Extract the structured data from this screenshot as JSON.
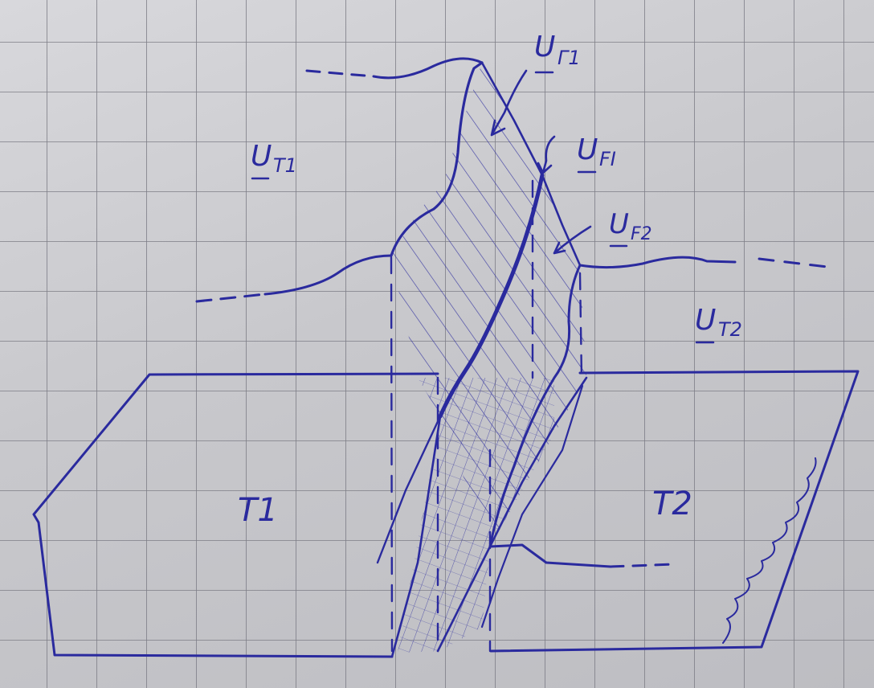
{
  "labels": {
    "u_t1": "U",
    "u_t1_sub": "T1",
    "u_t2": "U",
    "u_t2_sub": "T2",
    "u_g1": "U",
    "u_g1_sub": "Γ1",
    "u_fi": "U",
    "u_fi_sub": "FI",
    "u_f2": "U",
    "u_f2_sub": "F2",
    "t1": "T1",
    "t2": "T2"
  },
  "colors": {
    "ink": "#2a2a9e",
    "grid": "#7d7d86",
    "paper": "#d3d3d7"
  }
}
